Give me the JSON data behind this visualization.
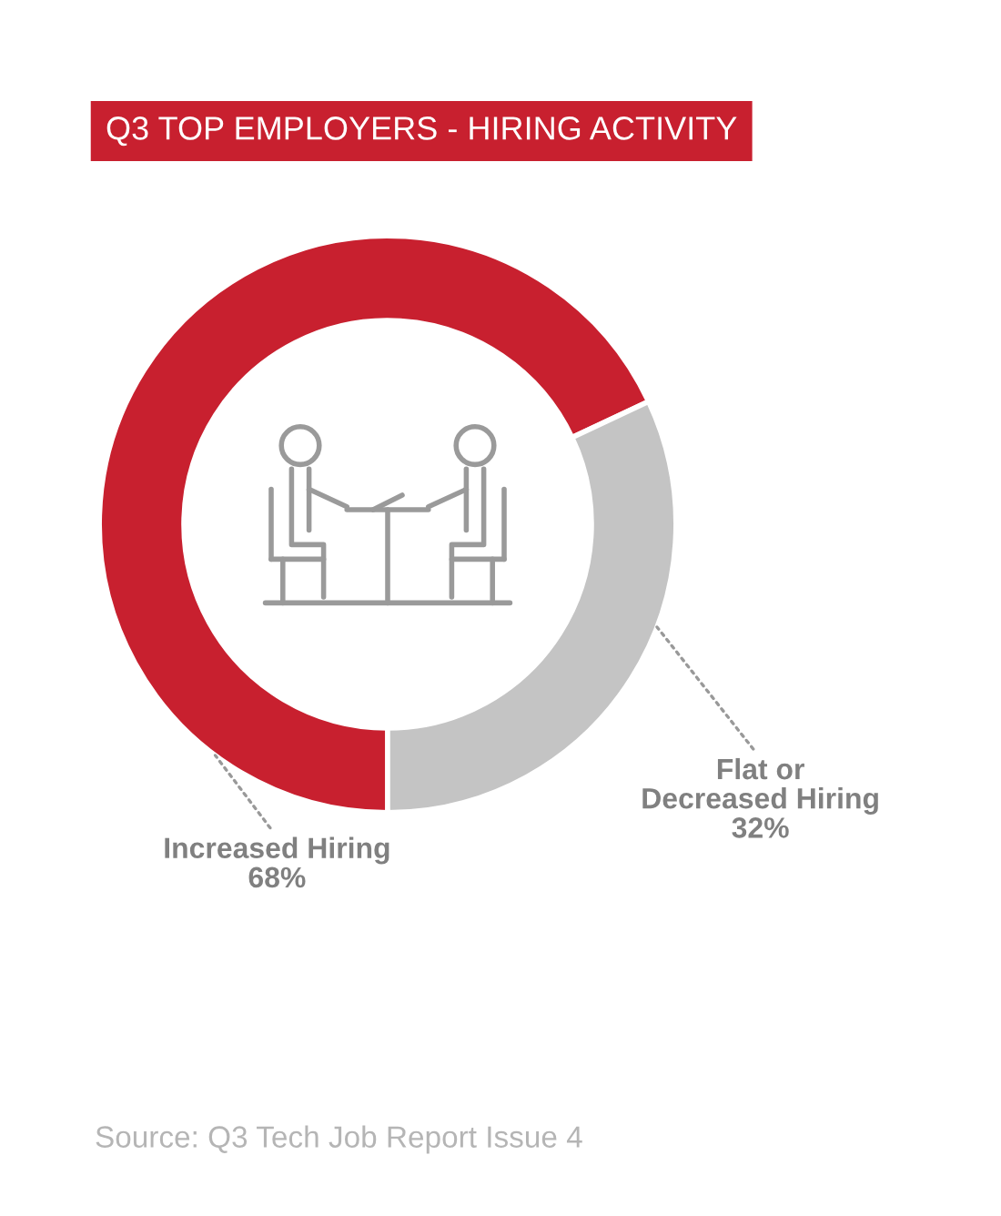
{
  "chart_data": {
    "type": "donut",
    "title": "Q3 TOP EMPLOYERS - HIRING ACTIVITY",
    "categories": [
      "Increased Hiring",
      "Flat or\nDecreased Hiring"
    ],
    "values": [
      68,
      32
    ],
    "value_labels": [
      "68%",
      "32%"
    ],
    "colors": [
      "#c8202f",
      "#c4c4c4"
    ],
    "annotations": [
      "Source: Q3 Tech Job Report Issue 4"
    ]
  }
}
